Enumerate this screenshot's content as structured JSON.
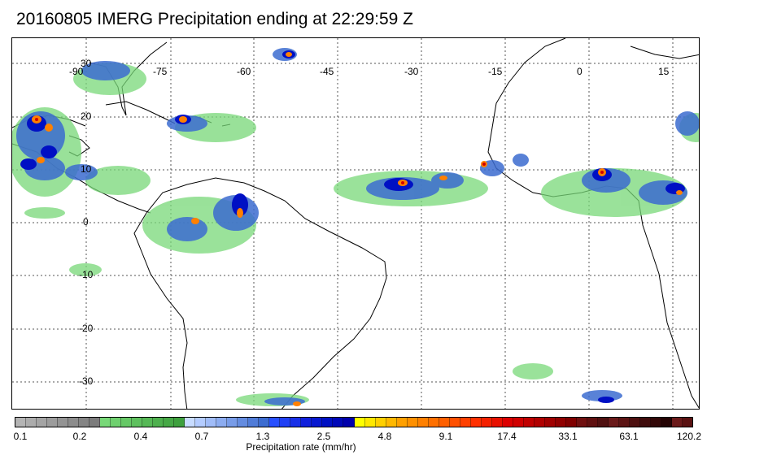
{
  "title": "20160805 IMERG Precipitation ending at 22:29:59 Z",
  "map": {
    "lon_labels": [
      "-90",
      "-75",
      "-60",
      "-45",
      "-30",
      "-15",
      "0",
      "15"
    ],
    "lat_labels": [
      "30",
      "20",
      "10",
      "0",
      "-10",
      "-20",
      "-30"
    ],
    "grid": true
  },
  "colorbar": {
    "label": "Precipitation rate (mm/hr)",
    "ticks": [
      "0.1",
      "0.2",
      "0.4",
      "0.7",
      "1.3",
      "2.5",
      "4.8",
      "9.1",
      "17.4",
      "33.1",
      "63.1",
      "120.2"
    ],
    "colors": [
      "#b4b4b4",
      "#acacac",
      "#a4a4a4",
      "#9c9c9c",
      "#949494",
      "#8c8c8c",
      "#848484",
      "#7c7c7c",
      "#78d878",
      "#6fd06f",
      "#66c866",
      "#5ec05e",
      "#56b856",
      "#4eb04e",
      "#46a846",
      "#3ea03e",
      "#c8dcff",
      "#b4ccff",
      "#a0bcf8",
      "#8cacf0",
      "#789ce8",
      "#648ce0",
      "#507cd8",
      "#3c6cd0",
      "#2850ff",
      "#2040f4",
      "#1830e8",
      "#1020dc",
      "#0818d0",
      "#0010c4",
      "#0008b8",
      "#0000ac",
      "#ffff00",
      "#ffe800",
      "#ffd000",
      "#ffb800",
      "#ffa000",
      "#ff9000",
      "#ff8000",
      "#ff7000",
      "#ff6000",
      "#ff5000",
      "#ff4000",
      "#ff3000",
      "#f42000",
      "#e81000",
      "#dc0000",
      "#d00000",
      "#c00000",
      "#b00000",
      "#a00000",
      "#900000",
      "#800000",
      "#701010",
      "#601010",
      "#501010",
      "#6a1a1a",
      "#5c1414",
      "#4e1010",
      "#400c0c",
      "#320808",
      "#240404",
      "#6b1a1a",
      "#5a1212"
    ]
  }
}
